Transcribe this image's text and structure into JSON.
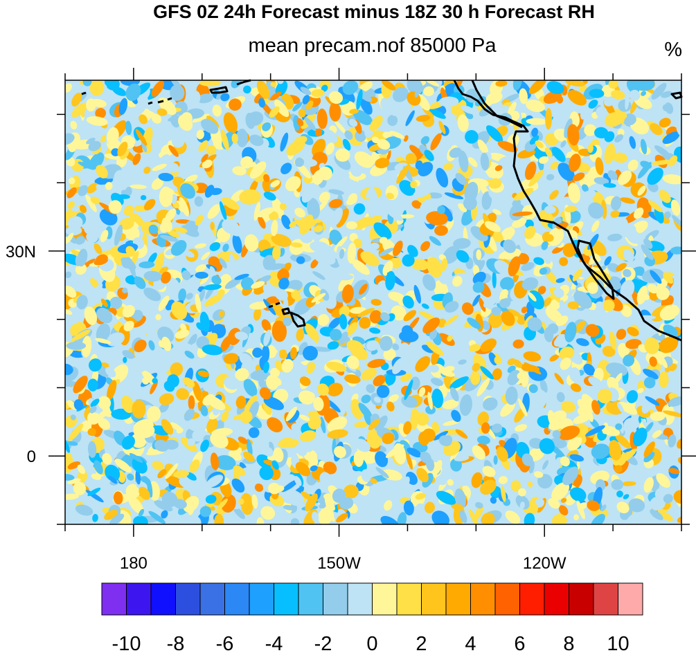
{
  "title": "GFS 0Z 24h Forecast minus 18Z 30 h Forecast RH",
  "subtitle": "mean precam.nof 85000 Pa",
  "units": "%",
  "map": {
    "lat_labels": [
      {
        "text": "30N",
        "lat": 30
      },
      {
        "text": "0",
        "lat": 0
      }
    ],
    "lon_labels": [
      {
        "text": "180",
        "lon": 180
      },
      {
        "text": "150W",
        "lon": 210
      },
      {
        "text": "120W",
        "lon": 240
      }
    ],
    "lat_range": [
      -10,
      55
    ],
    "lon_range": [
      170,
      260
    ]
  },
  "colorbar": {
    "colors": [
      "#7f2ff0",
      "#3d16ef",
      "#1010ff",
      "#2d4fe0",
      "#3a72e5",
      "#2b88f5",
      "#1ea0ff",
      "#07bfff",
      "#50c3f3",
      "#93cdeb",
      "#bde3f5",
      "#fff69a",
      "#ffe047",
      "#ffc51c",
      "#ffaa00",
      "#ff8f00",
      "#ff6200",
      "#ff1e00",
      "#ea0000",
      "#c80000",
      "#df4444",
      "#ffaaaa"
    ],
    "tick_labels": [
      "-10",
      "-8",
      "-6",
      "-4",
      "-2",
      "0",
      "2",
      "4",
      "6",
      "8",
      "10"
    ]
  }
}
